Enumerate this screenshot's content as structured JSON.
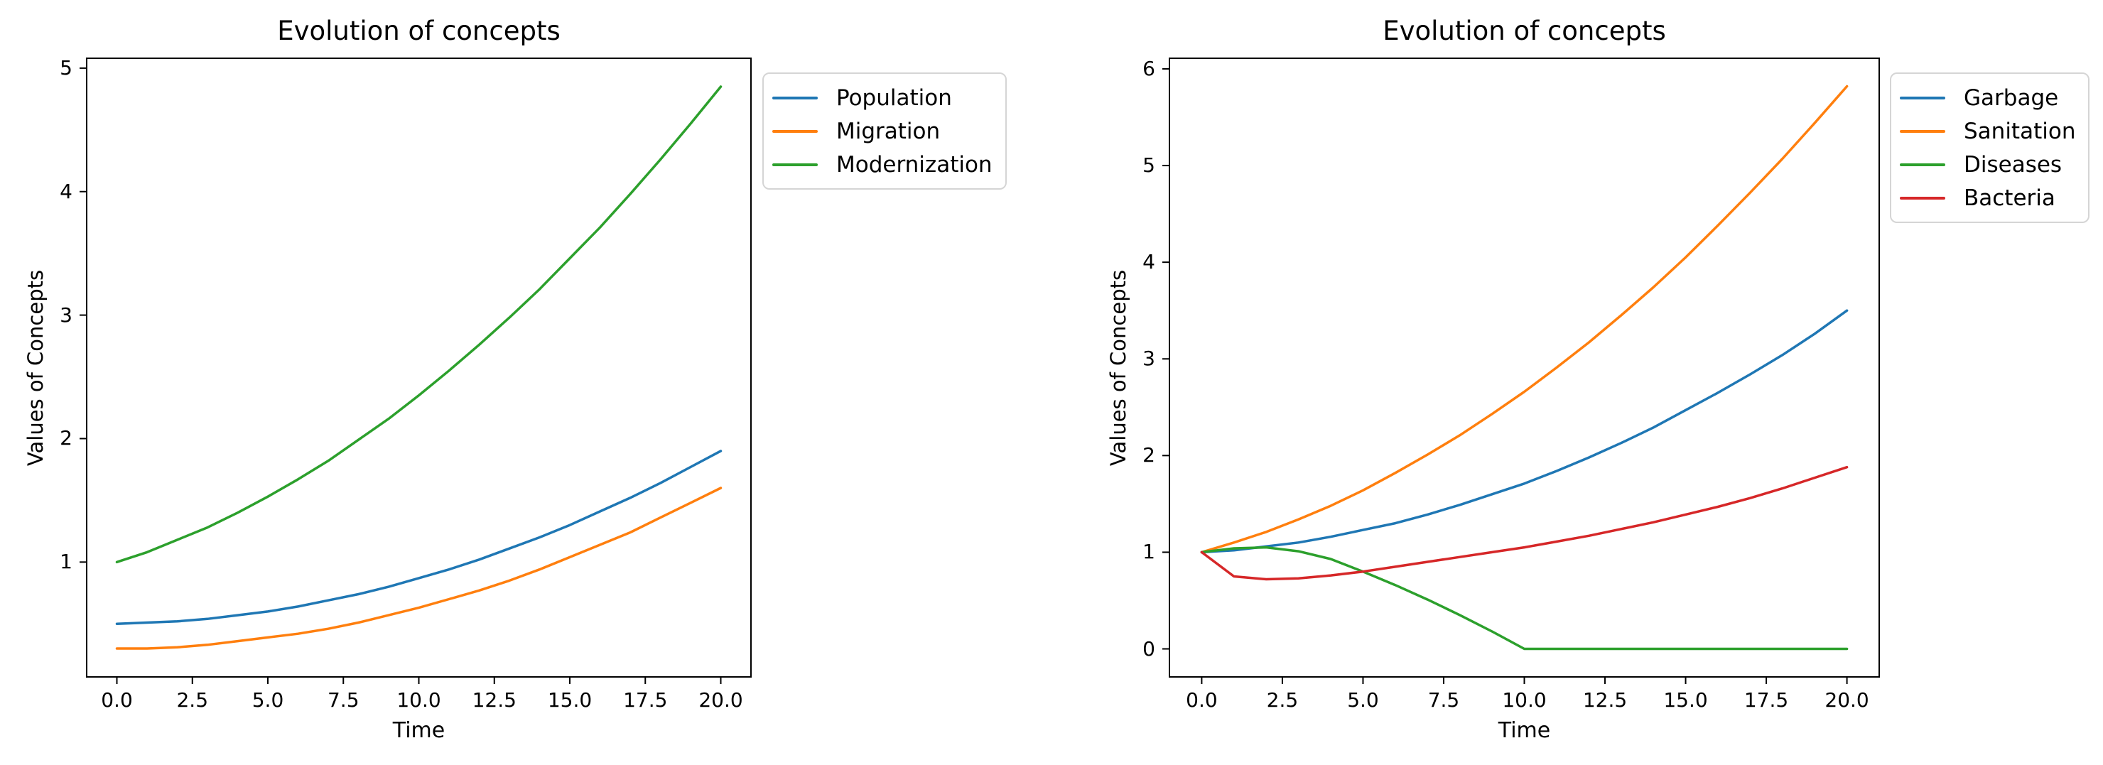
{
  "figure": {
    "background": "#ffffff",
    "text_color": "#000000",
    "spine_color": "#000000"
  },
  "chart_data": [
    {
      "type": "line",
      "title": "Evolution of concepts",
      "xlabel": "Time",
      "ylabel": "Values of Concepts",
      "grid": false,
      "legend_position": "outside-upper-right",
      "xlim": [
        -1,
        21
      ],
      "ylim": [
        0.07,
        5.08
      ],
      "x_tick_values": [
        0,
        2.5,
        5,
        7.5,
        10,
        12.5,
        15,
        17.5,
        20
      ],
      "x_tick_labels": [
        "0.0",
        "2.5",
        "5.0",
        "7.5",
        "10.0",
        "12.5",
        "15.0",
        "17.5",
        "20.0"
      ],
      "y_tick_values": [
        1,
        2,
        3,
        4,
        5
      ],
      "y_tick_labels": [
        "1",
        "2",
        "3",
        "4",
        "5"
      ],
      "x": [
        0,
        1,
        2,
        3,
        4,
        5,
        6,
        7,
        8,
        9,
        10,
        11,
        12,
        13,
        14,
        15,
        16,
        17,
        18,
        19,
        20
      ],
      "series": [
        {
          "name": "Population",
          "color": "#1f77b4",
          "values": [
            0.5,
            0.51,
            0.52,
            0.54,
            0.57,
            0.6,
            0.64,
            0.69,
            0.74,
            0.8,
            0.87,
            0.94,
            1.02,
            1.11,
            1.2,
            1.3,
            1.41,
            1.52,
            1.64,
            1.77,
            1.9
          ]
        },
        {
          "name": "Migration",
          "color": "#ff7f0e",
          "values": [
            0.3,
            0.3,
            0.31,
            0.33,
            0.36,
            0.39,
            0.42,
            0.46,
            0.51,
            0.57,
            0.63,
            0.7,
            0.77,
            0.85,
            0.94,
            1.04,
            1.14,
            1.24,
            1.36,
            1.48,
            1.6
          ]
        },
        {
          "name": "Modernization",
          "color": "#2ca02c",
          "values": [
            1.0,
            1.08,
            1.18,
            1.28,
            1.4,
            1.53,
            1.67,
            1.82,
            1.99,
            2.16,
            2.35,
            2.55,
            2.76,
            2.98,
            3.21,
            3.46,
            3.71,
            3.98,
            4.26,
            4.55,
            4.85
          ]
        }
      ]
    },
    {
      "type": "line",
      "title": "Evolution of concepts",
      "xlabel": "Time",
      "ylabel": "Values of Concepts",
      "grid": false,
      "legend_position": "outside-upper-right",
      "xlim": [
        -1,
        21
      ],
      "ylim": [
        -0.29,
        6.11
      ],
      "x_tick_values": [
        0,
        2.5,
        5,
        7.5,
        10,
        12.5,
        15,
        17.5,
        20
      ],
      "x_tick_labels": [
        "0.0",
        "2.5",
        "5.0",
        "7.5",
        "10.0",
        "12.5",
        "15.0",
        "17.5",
        "20.0"
      ],
      "y_tick_values": [
        0,
        1,
        2,
        3,
        4,
        5,
        6
      ],
      "y_tick_labels": [
        "0",
        "1",
        "2",
        "3",
        "4",
        "5",
        "6"
      ],
      "x": [
        0,
        1,
        2,
        3,
        4,
        5,
        6,
        7,
        8,
        9,
        10,
        11,
        12,
        13,
        14,
        15,
        16,
        17,
        18,
        19,
        20
      ],
      "series": [
        {
          "name": "Garbage",
          "color": "#1f77b4",
          "values": [
            1.0,
            1.02,
            1.06,
            1.1,
            1.16,
            1.23,
            1.3,
            1.39,
            1.49,
            1.6,
            1.71,
            1.84,
            1.98,
            2.13,
            2.29,
            2.47,
            2.65,
            2.84,
            3.04,
            3.26,
            3.5
          ]
        },
        {
          "name": "Sanitation",
          "color": "#ff7f0e",
          "values": [
            1.0,
            1.1,
            1.21,
            1.34,
            1.48,
            1.64,
            1.82,
            2.01,
            2.21,
            2.43,
            2.66,
            2.91,
            3.17,
            3.45,
            3.74,
            4.05,
            4.38,
            4.72,
            5.07,
            5.44,
            5.82
          ]
        },
        {
          "name": "Diseases",
          "color": "#2ca02c",
          "values": [
            1.0,
            1.04,
            1.05,
            1.01,
            0.93,
            0.8,
            0.66,
            0.51,
            0.35,
            0.18,
            0.0,
            0.0,
            0.0,
            0.0,
            0.0,
            0.0,
            0.0,
            0.0,
            0.0,
            0.0,
            0.0
          ]
        },
        {
          "name": "Bacteria",
          "color": "#d62728",
          "values": [
            1.0,
            0.75,
            0.72,
            0.73,
            0.76,
            0.8,
            0.85,
            0.9,
            0.95,
            1.0,
            1.05,
            1.11,
            1.17,
            1.24,
            1.31,
            1.39,
            1.47,
            1.56,
            1.66,
            1.77,
            1.88
          ]
        }
      ]
    }
  ]
}
